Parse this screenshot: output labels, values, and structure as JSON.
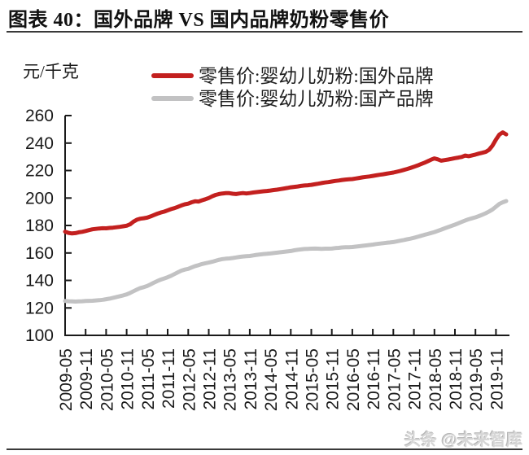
{
  "header": {
    "title": "图表 40：国外品牌 VS 国内品牌奶粉零售价"
  },
  "watermark": "头条 @未来智库",
  "chart_data": {
    "type": "line",
    "title": "国外品牌 VS 国内品牌奶粉零售价",
    "unit_label": "元/千克",
    "ylim": [
      100,
      260
    ],
    "y_ticks": [
      100,
      120,
      140,
      160,
      180,
      200,
      220,
      240,
      260
    ],
    "x_tick_labels": [
      "2009-05",
      "2009-11",
      "2010-05",
      "2010-11",
      "2011-05",
      "2011-11",
      "2012-05",
      "2012-11",
      "2013-05",
      "2013-11",
      "2014-05",
      "2014-11",
      "2015-05",
      "2015-11",
      "2016-05",
      "2016-11",
      "2017-05",
      "2017-11",
      "2018-05",
      "2018-11",
      "2019-05",
      "2019-11"
    ],
    "x_tick_every_n_points": 6,
    "x_start": "2009-05",
    "x_frequency": "monthly",
    "grid": false,
    "legend_position": "top-center",
    "axis_color": "#1a1a1a",
    "series": [
      {
        "id": "foreign-brand",
        "name": "零售价:婴幼儿奶粉:国外品牌",
        "color": "#c3201f",
        "values": [
          175.5,
          174.6,
          174.2,
          174.4,
          175.0,
          175.4,
          176.0,
          176.6,
          177.2,
          177.5,
          177.8,
          178.0,
          177.9,
          178.2,
          178.4,
          178.7,
          179.0,
          179.4,
          179.8,
          180.8,
          182.8,
          184.2,
          184.9,
          185.3,
          185.7,
          186.6,
          187.6,
          188.6,
          189.4,
          190.1,
          191.0,
          191.9,
          192.6,
          193.6,
          194.6,
          195.4,
          195.9,
          196.9,
          197.6,
          197.4,
          198.3,
          199.1,
          200.0,
          201.2,
          202.2,
          202.9,
          203.3,
          203.5,
          203.5,
          203.1,
          202.9,
          203.3,
          203.6,
          203.3,
          203.6,
          204.0,
          204.3,
          204.6,
          204.9,
          205.1,
          205.4,
          205.8,
          206.1,
          206.5,
          206.9,
          207.3,
          207.8,
          208.1,
          208.4,
          208.8,
          209.1,
          209.3,
          209.6,
          210.0,
          210.4,
          210.9,
          211.3,
          211.6,
          212.0,
          212.4,
          212.7,
          213.1,
          213.4,
          213.6,
          213.8,
          214.2,
          214.6,
          215.0,
          215.4,
          215.7,
          216.1,
          216.5,
          216.9,
          217.3,
          217.7,
          218.1,
          218.5,
          219.1,
          219.7,
          220.4,
          221.1,
          221.9,
          222.7,
          223.6,
          224.6,
          225.6,
          226.7,
          227.9,
          228.8,
          228.1,
          227.2,
          227.6,
          228.0,
          228.5,
          229.0,
          229.4,
          229.9,
          230.9,
          230.4,
          231.0,
          231.6,
          232.3,
          232.9,
          233.6,
          235.1,
          238.2,
          242.5,
          246.2,
          247.8,
          246.3
        ]
      },
      {
        "id": "domestic-brand",
        "name": "零售价:婴幼儿奶粉:国产品牌",
        "color": "#c2c2c3",
        "values": [
          125.0,
          124.8,
          124.7,
          124.6,
          124.7,
          124.8,
          125.0,
          125.1,
          125.2,
          125.4,
          125.6,
          125.9,
          126.3,
          126.7,
          127.3,
          127.9,
          128.5,
          129.1,
          129.8,
          130.9,
          132.1,
          133.3,
          134.4,
          135.1,
          135.9,
          137.1,
          138.4,
          139.6,
          140.6,
          141.4,
          142.3,
          143.4,
          144.6,
          145.9,
          147.1,
          147.9,
          148.4,
          149.4,
          150.4,
          151.1,
          151.9,
          152.5,
          153.0,
          153.6,
          154.3,
          155.0,
          155.5,
          155.8,
          156.0,
          156.3,
          156.7,
          157.1,
          157.4,
          157.6,
          157.8,
          158.2,
          158.6,
          158.9,
          159.2,
          159.4,
          159.6,
          159.9,
          160.2,
          160.5,
          160.8,
          161.1,
          161.4,
          161.9,
          162.3,
          162.6,
          162.9,
          163.0,
          163.1,
          163.2,
          163.1,
          163.0,
          163.1,
          163.1,
          163.2,
          163.5,
          163.7,
          164.0,
          164.1,
          164.2,
          164.3,
          164.6,
          164.9,
          165.2,
          165.5,
          165.8,
          166.1,
          166.5,
          166.8,
          167.1,
          167.4,
          167.6,
          167.9,
          168.4,
          168.9,
          169.4,
          169.9,
          170.4,
          171.0,
          171.7,
          172.4,
          173.1,
          173.8,
          174.5,
          175.2,
          176.1,
          177.0,
          177.9,
          178.8,
          179.7,
          180.6,
          181.6,
          182.6,
          183.6,
          184.5,
          185.2,
          185.9,
          186.8,
          187.8,
          188.9,
          190.2,
          191.7,
          193.7,
          195.7,
          196.9,
          197.8
        ]
      }
    ]
  }
}
